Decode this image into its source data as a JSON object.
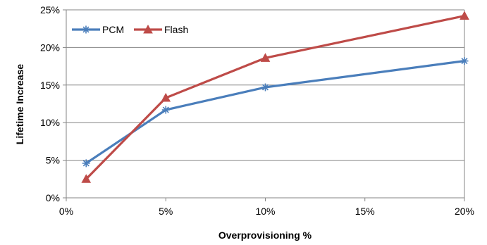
{
  "chart_data": {
    "type": "line",
    "xlabel": "Overprovisioning %",
    "ylabel": "Lifetime Increase",
    "xlim": [
      0,
      20
    ],
    "ylim": [
      0,
      25
    ],
    "xticks": [
      0,
      5,
      10,
      15,
      20
    ],
    "yticks": [
      0,
      5,
      10,
      15,
      20,
      25
    ],
    "xtick_labels": [
      "0%",
      "5%",
      "10%",
      "15%",
      "20%"
    ],
    "ytick_labels": [
      "0%",
      "5%",
      "10%",
      "15%",
      "20%",
      "25%"
    ],
    "grid": "horizontal",
    "legend_position": "top-left",
    "series": [
      {
        "name": "PCM",
        "color": "#4A7EBB",
        "marker": "asterisk",
        "x": [
          1,
          5,
          10,
          20
        ],
        "y": [
          4.6,
          11.7,
          14.7,
          18.2
        ]
      },
      {
        "name": "Flash",
        "color": "#BE4B48",
        "marker": "triangle",
        "x": [
          1,
          5,
          10,
          20
        ],
        "y": [
          2.5,
          13.3,
          18.6,
          24.2
        ]
      }
    ]
  }
}
